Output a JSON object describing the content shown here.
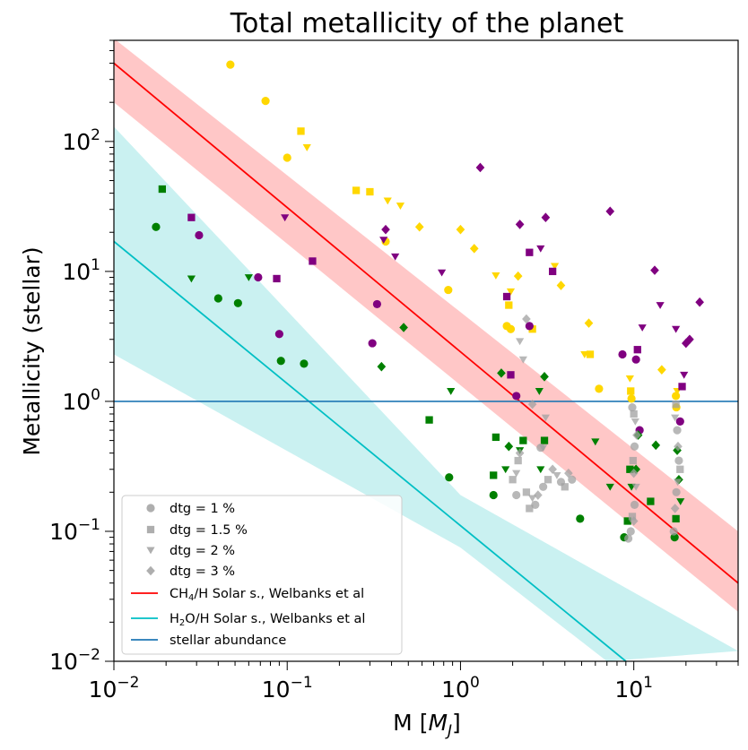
{
  "chart_data": {
    "type": "scatter",
    "title": "Total metallicity of the planet",
    "xlabel": "M [M_J]",
    "xlabel_main": "M [",
    "xlabel_var": "M",
    "xlabel_sub": "J",
    "xlabel_end": "]",
    "ylabel": "Metallicity (stellar)",
    "xscale": "log",
    "yscale": "log",
    "xlim": [
      0.01,
      40
    ],
    "ylim": [
      0.01,
      600
    ],
    "x_ticks": [
      {
        "value": 0.01,
        "base": "10",
        "exp": "−2"
      },
      {
        "value": 0.1,
        "base": "10",
        "exp": "−1"
      },
      {
        "value": 1,
        "base": "10",
        "exp": "0"
      },
      {
        "value": 10,
        "base": "10",
        "exp": "1"
      }
    ],
    "y_ticks": [
      {
        "value": 0.01,
        "base": "10",
        "exp": "−2"
      },
      {
        "value": 0.1,
        "base": "10",
        "exp": "−1"
      },
      {
        "value": 1,
        "base": "10",
        "exp": "0"
      },
      {
        "value": 10,
        "base": "10",
        "exp": "1"
      },
      {
        "value": 100,
        "base": "10",
        "exp": "2"
      }
    ],
    "colors": {
      "ch4_line": "#ff0000",
      "ch4_band": "#ff9999",
      "h2o_line": "#00bfc4",
      "h2o_band": "#9ee6e6",
      "stellar": "#1f77b4",
      "gold": "#ffd700",
      "purple": "#800080",
      "green": "#008000",
      "gray": "#a0a0a0"
    },
    "lines": [
      {
        "name": "CH4/H Solar s., Welbanks et al",
        "points": [
          [
            0.01,
            400
          ],
          [
            40,
            0.04
          ]
        ],
        "band_upper": [
          [
            0.01,
            620
          ],
          [
            40,
            0.1
          ]
        ],
        "band_lower": [
          [
            0.01,
            200
          ],
          [
            40,
            0.024
          ]
        ]
      },
      {
        "name": "H2O/H Solar s., Welbanks et al",
        "points": [
          [
            0.01,
            17
          ],
          [
            9,
            0.01
          ]
        ],
        "band_upper": [
          [
            0.01,
            130
          ],
          [
            1,
            0.19
          ],
          [
            40,
            0.012
          ]
        ],
        "band_lower": [
          [
            0.01,
            2.3
          ],
          [
            1,
            0.075
          ],
          [
            7,
            0.01
          ]
        ]
      },
      {
        "name": "stellar abundance",
        "y": 1.0
      }
    ],
    "legend": [
      {
        "label": "dtg = 1 %",
        "marker": "circle"
      },
      {
        "label": "dtg = 1.5 %",
        "marker": "square"
      },
      {
        "label": "dtg = 2 %",
        "marker": "triangle"
      },
      {
        "label": "dtg = 3 %",
        "marker": "diamond"
      },
      {
        "label": "CH4/H Solar s., Welbanks et al",
        "main": "CH",
        "sub": "4",
        "rest": "/H Solar s., Welbanks et al",
        "line": "ch4_line"
      },
      {
        "label": "H2O/H Solar s., Welbanks et al",
        "main": "H",
        "sub": "2",
        "rest": "O/H Solar s., Welbanks et al",
        "line": "h2o_line"
      },
      {
        "label": "stellar abundance",
        "line": "stellar"
      }
    ],
    "points": [
      {
        "x": 0.047,
        "y": 390,
        "c": "gold",
        "m": "circle"
      },
      {
        "x": 0.075,
        "y": 205,
        "c": "gold",
        "m": "circle"
      },
      {
        "x": 0.1,
        "y": 75,
        "c": "gold",
        "m": "circle"
      },
      {
        "x": 0.12,
        "y": 120,
        "c": "gold",
        "m": "square"
      },
      {
        "x": 0.13,
        "y": 90,
        "c": "gold",
        "m": "triangle"
      },
      {
        "x": 0.25,
        "y": 42,
        "c": "gold",
        "m": "square"
      },
      {
        "x": 0.3,
        "y": 41,
        "c": "gold",
        "m": "square"
      },
      {
        "x": 0.38,
        "y": 35,
        "c": "gold",
        "m": "triangle"
      },
      {
        "x": 0.45,
        "y": 32,
        "c": "gold",
        "m": "triangle"
      },
      {
        "x": 0.58,
        "y": 22,
        "c": "gold",
        "m": "diamond"
      },
      {
        "x": 1.0,
        "y": 21,
        "c": "gold",
        "m": "diamond"
      },
      {
        "x": 1.2,
        "y": 15,
        "c": "gold",
        "m": "diamond"
      },
      {
        "x": 0.37,
        "y": 17,
        "c": "gold",
        "m": "circle"
      },
      {
        "x": 0.85,
        "y": 7.2,
        "c": "gold",
        "m": "circle"
      },
      {
        "x": 1.6,
        "y": 9.3,
        "c": "gold",
        "m": "triangle"
      },
      {
        "x": 2.15,
        "y": 9.2,
        "c": "gold",
        "m": "diamond"
      },
      {
        "x": 1.95,
        "y": 7.0,
        "c": "gold",
        "m": "triangle"
      },
      {
        "x": 1.9,
        "y": 5.5,
        "c": "gold",
        "m": "square"
      },
      {
        "x": 3.5,
        "y": 11,
        "c": "gold",
        "m": "triangle"
      },
      {
        "x": 3.8,
        "y": 7.8,
        "c": "gold",
        "m": "diamond"
      },
      {
        "x": 1.85,
        "y": 3.8,
        "c": "gold",
        "m": "circle"
      },
      {
        "x": 1.95,
        "y": 3.6,
        "c": "gold",
        "m": "circle"
      },
      {
        "x": 2.6,
        "y": 3.6,
        "c": "gold",
        "m": "square"
      },
      {
        "x": 5.5,
        "y": 4.0,
        "c": "gold",
        "m": "diamond"
      },
      {
        "x": 5.2,
        "y": 2.3,
        "c": "gold",
        "m": "triangle"
      },
      {
        "x": 5.6,
        "y": 2.3,
        "c": "gold",
        "m": "square"
      },
      {
        "x": 6.3,
        "y": 1.25,
        "c": "gold",
        "m": "circle"
      },
      {
        "x": 9.5,
        "y": 1.5,
        "c": "gold",
        "m": "triangle"
      },
      {
        "x": 9.6,
        "y": 1.2,
        "c": "gold",
        "m": "square"
      },
      {
        "x": 9.7,
        "y": 1.05,
        "c": "gold",
        "m": "circle"
      },
      {
        "x": 14.5,
        "y": 1.75,
        "c": "gold",
        "m": "diamond"
      },
      {
        "x": 17.5,
        "y": 1.1,
        "c": "gold",
        "m": "circle"
      },
      {
        "x": 17.8,
        "y": 1.2,
        "c": "gold",
        "m": "triangle"
      },
      {
        "x": 17.6,
        "y": 0.9,
        "c": "gold",
        "m": "circle"
      },
      {
        "x": 1.3,
        "y": 63,
        "c": "purple",
        "m": "diamond"
      },
      {
        "x": 0.028,
        "y": 26,
        "c": "purple",
        "m": "square"
      },
      {
        "x": 0.031,
        "y": 19,
        "c": "purple",
        "m": "circle"
      },
      {
        "x": 0.097,
        "y": 26,
        "c": "purple",
        "m": "triangle"
      },
      {
        "x": 0.068,
        "y": 9.0,
        "c": "purple",
        "m": "circle"
      },
      {
        "x": 0.087,
        "y": 8.8,
        "c": "purple",
        "m": "square"
      },
      {
        "x": 0.14,
        "y": 12,
        "c": "purple",
        "m": "square"
      },
      {
        "x": 0.09,
        "y": 3.3,
        "c": "purple",
        "m": "circle"
      },
      {
        "x": 0.37,
        "y": 21,
        "c": "purple",
        "m": "diamond"
      },
      {
        "x": 0.36,
        "y": 17.5,
        "c": "purple",
        "m": "triangle"
      },
      {
        "x": 0.42,
        "y": 13,
        "c": "purple",
        "m": "triangle"
      },
      {
        "x": 0.33,
        "y": 5.6,
        "c": "purple",
        "m": "circle"
      },
      {
        "x": 0.31,
        "y": 2.8,
        "c": "purple",
        "m": "circle"
      },
      {
        "x": 0.78,
        "y": 9.8,
        "c": "purple",
        "m": "triangle"
      },
      {
        "x": 2.2,
        "y": 23,
        "c": "purple",
        "m": "diamond"
      },
      {
        "x": 3.1,
        "y": 26,
        "c": "purple",
        "m": "diamond"
      },
      {
        "x": 7.3,
        "y": 29,
        "c": "purple",
        "m": "diamond"
      },
      {
        "x": 2.9,
        "y": 15,
        "c": "purple",
        "m": "triangle"
      },
      {
        "x": 2.5,
        "y": 14,
        "c": "purple",
        "m": "square"
      },
      {
        "x": 3.4,
        "y": 10,
        "c": "purple",
        "m": "square"
      },
      {
        "x": 1.85,
        "y": 6.4,
        "c": "purple",
        "m": "square"
      },
      {
        "x": 2.5,
        "y": 3.8,
        "c": "purple",
        "m": "circle"
      },
      {
        "x": 1.95,
        "y": 1.6,
        "c": "purple",
        "m": "square"
      },
      {
        "x": 13.2,
        "y": 10.2,
        "c": "purple",
        "m": "diamond"
      },
      {
        "x": 14.2,
        "y": 5.5,
        "c": "purple",
        "m": "triangle"
      },
      {
        "x": 24,
        "y": 5.8,
        "c": "purple",
        "m": "diamond"
      },
      {
        "x": 11.2,
        "y": 3.7,
        "c": "purple",
        "m": "triangle"
      },
      {
        "x": 17.5,
        "y": 3.6,
        "c": "purple",
        "m": "triangle"
      },
      {
        "x": 10.5,
        "y": 2.5,
        "c": "purple",
        "m": "square"
      },
      {
        "x": 10.3,
        "y": 2.1,
        "c": "purple",
        "m": "circle"
      },
      {
        "x": 8.6,
        "y": 2.3,
        "c": "purple",
        "m": "circle"
      },
      {
        "x": 21,
        "y": 3.0,
        "c": "purple",
        "m": "diamond"
      },
      {
        "x": 20,
        "y": 2.8,
        "c": "purple",
        "m": "diamond"
      },
      {
        "x": 19.5,
        "y": 1.6,
        "c": "purple",
        "m": "triangle"
      },
      {
        "x": 19,
        "y": 1.3,
        "c": "purple",
        "m": "square"
      },
      {
        "x": 18.5,
        "y": 0.7,
        "c": "purple",
        "m": "circle"
      },
      {
        "x": 10.8,
        "y": 0.6,
        "c": "purple",
        "m": "circle"
      },
      {
        "x": 2.1,
        "y": 1.1,
        "c": "purple",
        "m": "circle"
      },
      {
        "x": 0.0175,
        "y": 22,
        "c": "green",
        "m": "circle"
      },
      {
        "x": 0.019,
        "y": 43,
        "c": "green",
        "m": "square"
      },
      {
        "x": 0.028,
        "y": 8.8,
        "c": "green",
        "m": "triangle"
      },
      {
        "x": 0.04,
        "y": 6.2,
        "c": "green",
        "m": "circle"
      },
      {
        "x": 0.052,
        "y": 5.7,
        "c": "green",
        "m": "circle"
      },
      {
        "x": 0.06,
        "y": 9.0,
        "c": "green",
        "m": "triangle"
      },
      {
        "x": 0.092,
        "y": 2.05,
        "c": "green",
        "m": "circle"
      },
      {
        "x": 0.125,
        "y": 1.95,
        "c": "green",
        "m": "circle"
      },
      {
        "x": 0.35,
        "y": 1.85,
        "c": "green",
        "m": "diamond"
      },
      {
        "x": 0.47,
        "y": 3.7,
        "c": "green",
        "m": "diamond"
      },
      {
        "x": 0.88,
        "y": 1.2,
        "c": "green",
        "m": "triangle"
      },
      {
        "x": 0.66,
        "y": 0.72,
        "c": "green",
        "m": "square"
      },
      {
        "x": 0.86,
        "y": 0.26,
        "c": "green",
        "m": "circle"
      },
      {
        "x": 1.6,
        "y": 0.53,
        "c": "green",
        "m": "square"
      },
      {
        "x": 1.72,
        "y": 1.65,
        "c": "green",
        "m": "diamond"
      },
      {
        "x": 1.82,
        "y": 0.3,
        "c": "green",
        "m": "triangle"
      },
      {
        "x": 1.9,
        "y": 0.45,
        "c": "green",
        "m": "diamond"
      },
      {
        "x": 2.2,
        "y": 0.42,
        "c": "green",
        "m": "triangle"
      },
      {
        "x": 2.3,
        "y": 0.5,
        "c": "green",
        "m": "square"
      },
      {
        "x": 1.55,
        "y": 0.27,
        "c": "green",
        "m": "square"
      },
      {
        "x": 1.55,
        "y": 0.19,
        "c": "green",
        "m": "circle"
      },
      {
        "x": 2.85,
        "y": 1.2,
        "c": "green",
        "m": "triangle"
      },
      {
        "x": 3.05,
        "y": 1.55,
        "c": "green",
        "m": "diamond"
      },
      {
        "x": 3.05,
        "y": 0.5,
        "c": "green",
        "m": "square"
      },
      {
        "x": 2.9,
        "y": 0.3,
        "c": "green",
        "m": "triangle"
      },
      {
        "x": 4.9,
        "y": 0.125,
        "c": "green",
        "m": "circle"
      },
      {
        "x": 6.0,
        "y": 0.49,
        "c": "green",
        "m": "triangle"
      },
      {
        "x": 7.3,
        "y": 0.22,
        "c": "green",
        "m": "triangle"
      },
      {
        "x": 9.5,
        "y": 0.3,
        "c": "green",
        "m": "square"
      },
      {
        "x": 9.7,
        "y": 0.22,
        "c": "green",
        "m": "triangle"
      },
      {
        "x": 10.3,
        "y": 0.3,
        "c": "green",
        "m": "diamond"
      },
      {
        "x": 10.6,
        "y": 0.55,
        "c": "green",
        "m": "diamond"
      },
      {
        "x": 9.2,
        "y": 0.12,
        "c": "green",
        "m": "square"
      },
      {
        "x": 8.8,
        "y": 0.09,
        "c": "green",
        "m": "circle"
      },
      {
        "x": 12.5,
        "y": 0.17,
        "c": "green",
        "m": "square"
      },
      {
        "x": 13.4,
        "y": 0.46,
        "c": "green",
        "m": "diamond"
      },
      {
        "x": 17.8,
        "y": 0.42,
        "c": "green",
        "m": "diamond"
      },
      {
        "x": 18.2,
        "y": 0.25,
        "c": "green",
        "m": "diamond"
      },
      {
        "x": 17.5,
        "y": 0.125,
        "c": "green",
        "m": "square"
      },
      {
        "x": 18.6,
        "y": 0.17,
        "c": "green",
        "m": "triangle"
      },
      {
        "x": 17.2,
        "y": 0.09,
        "c": "green",
        "m": "circle"
      },
      {
        "x": 2.4,
        "y": 4.3,
        "c": "gray",
        "m": "diamond"
      },
      {
        "x": 2.2,
        "y": 2.9,
        "c": "gray",
        "m": "triangle"
      },
      {
        "x": 2.3,
        "y": 2.1,
        "c": "gray",
        "m": "triangle"
      },
      {
        "x": 2.2,
        "y": 0.4,
        "c": "gray",
        "m": "diamond"
      },
      {
        "x": 2.15,
        "y": 0.35,
        "c": "gray",
        "m": "square"
      },
      {
        "x": 2.1,
        "y": 0.28,
        "c": "gray",
        "m": "triangle"
      },
      {
        "x": 2.0,
        "y": 0.25,
        "c": "gray",
        "m": "square"
      },
      {
        "x": 2.1,
        "y": 0.19,
        "c": "gray",
        "m": "circle"
      },
      {
        "x": 2.4,
        "y": 0.2,
        "c": "gray",
        "m": "square"
      },
      {
        "x": 2.6,
        "y": 0.18,
        "c": "gray",
        "m": "triangle"
      },
      {
        "x": 2.8,
        "y": 0.19,
        "c": "gray",
        "m": "diamond"
      },
      {
        "x": 3.0,
        "y": 0.22,
        "c": "gray",
        "m": "circle"
      },
      {
        "x": 3.2,
        "y": 0.25,
        "c": "gray",
        "m": "square"
      },
      {
        "x": 3.4,
        "y": 0.3,
        "c": "gray",
        "m": "diamond"
      },
      {
        "x": 3.6,
        "y": 0.27,
        "c": "gray",
        "m": "triangle"
      },
      {
        "x": 3.8,
        "y": 0.24,
        "c": "gray",
        "m": "circle"
      },
      {
        "x": 4.0,
        "y": 0.22,
        "c": "gray",
        "m": "square"
      },
      {
        "x": 4.2,
        "y": 0.28,
        "c": "gray",
        "m": "diamond"
      },
      {
        "x": 4.4,
        "y": 0.25,
        "c": "gray",
        "m": "circle"
      },
      {
        "x": 2.7,
        "y": 0.16,
        "c": "gray",
        "m": "circle"
      },
      {
        "x": 2.5,
        "y": 0.15,
        "c": "gray",
        "m": "square"
      },
      {
        "x": 3.0,
        "y": 0.44,
        "c": "gray",
        "m": "triangle"
      },
      {
        "x": 2.9,
        "y": 0.44,
        "c": "gray",
        "m": "circle"
      },
      {
        "x": 3.1,
        "y": 0.75,
        "c": "gray",
        "m": "triangle"
      },
      {
        "x": 2.6,
        "y": 0.95,
        "c": "gray",
        "m": "diamond"
      },
      {
        "x": 9.8,
        "y": 0.9,
        "c": "gray",
        "m": "circle"
      },
      {
        "x": 10.0,
        "y": 0.8,
        "c": "gray",
        "m": "square"
      },
      {
        "x": 10.2,
        "y": 0.7,
        "c": "gray",
        "m": "triangle"
      },
      {
        "x": 10.4,
        "y": 0.55,
        "c": "gray",
        "m": "diamond"
      },
      {
        "x": 10.1,
        "y": 0.45,
        "c": "gray",
        "m": "circle"
      },
      {
        "x": 9.9,
        "y": 0.35,
        "c": "gray",
        "m": "square"
      },
      {
        "x": 10.0,
        "y": 0.28,
        "c": "gray",
        "m": "diamond"
      },
      {
        "x": 10.3,
        "y": 0.22,
        "c": "gray",
        "m": "triangle"
      },
      {
        "x": 10.1,
        "y": 0.16,
        "c": "gray",
        "m": "circle"
      },
      {
        "x": 9.8,
        "y": 0.13,
        "c": "gray",
        "m": "square"
      },
      {
        "x": 9.6,
        "y": 0.1,
        "c": "gray",
        "m": "circle"
      },
      {
        "x": 9.3,
        "y": 0.088,
        "c": "gray",
        "m": "circle"
      },
      {
        "x": 10.0,
        "y": 0.12,
        "c": "gray",
        "m": "diamond"
      },
      {
        "x": 17.5,
        "y": 0.95,
        "c": "gray",
        "m": "square"
      },
      {
        "x": 17.3,
        "y": 0.75,
        "c": "gray",
        "m": "triangle"
      },
      {
        "x": 17.8,
        "y": 0.6,
        "c": "gray",
        "m": "circle"
      },
      {
        "x": 18.0,
        "y": 0.45,
        "c": "gray",
        "m": "diamond"
      },
      {
        "x": 18.2,
        "y": 0.35,
        "c": "gray",
        "m": "circle"
      },
      {
        "x": 18.5,
        "y": 0.3,
        "c": "gray",
        "m": "square"
      },
      {
        "x": 17.9,
        "y": 0.24,
        "c": "gray",
        "m": "triangle"
      },
      {
        "x": 17.6,
        "y": 0.2,
        "c": "gray",
        "m": "circle"
      },
      {
        "x": 17.3,
        "y": 0.15,
        "c": "gray",
        "m": "diamond"
      },
      {
        "x": 17.0,
        "y": 0.1,
        "c": "gray",
        "m": "circle"
      }
    ]
  }
}
